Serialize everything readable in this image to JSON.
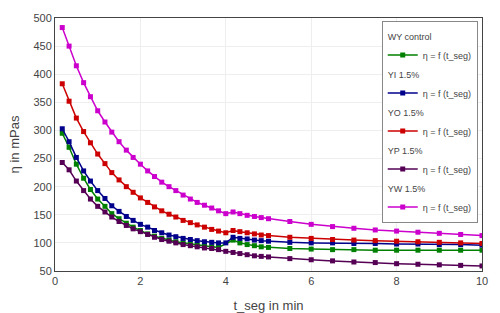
{
  "chart_data": {
    "type": "line",
    "xlabel": "t_seg in min",
    "ylabel": "η in mPas",
    "xlim": [
      0,
      10
    ],
    "ylim": [
      50,
      500
    ],
    "xticks": [
      0,
      2,
      4,
      6,
      8,
      10
    ],
    "yticks": [
      50,
      100,
      150,
      200,
      250,
      300,
      350,
      400,
      450,
      500
    ],
    "grid": true,
    "legend": "upper right",
    "marker": "square",
    "series": [
      {
        "legend_group": "WY control",
        "name": "η = f (t_seg)",
        "color": "#008000",
        "x": [
          0.17,
          0.33,
          0.5,
          0.67,
          0.83,
          1.0,
          1.17,
          1.33,
          1.5,
          1.67,
          1.83,
          2.0,
          2.17,
          2.33,
          2.5,
          2.67,
          2.83,
          3.0,
          3.17,
          3.33,
          3.5,
          3.67,
          3.83,
          4.17,
          4.33,
          4.5,
          4.67,
          4.83,
          5.0,
          5.5,
          6.0,
          6.5,
          7.0,
          7.5,
          8.0,
          8.5,
          9.0,
          9.5,
          10.0
        ],
        "values": [
          295,
          270,
          240,
          215,
          195,
          178,
          165,
          152,
          143,
          135,
          128,
          122,
          116,
          112,
          108,
          105,
          102,
          100,
          98,
          96,
          95,
          93,
          92,
          105,
          100,
          97,
          95,
          93,
          92,
          90,
          89,
          88,
          88,
          87,
          87,
          87,
          87,
          87,
          87
        ]
      },
      {
        "legend_group": "YI 1.5%",
        "name": "η = f (t_seg)",
        "color": "#00008B",
        "x": [
          0.17,
          0.33,
          0.5,
          0.67,
          0.83,
          1.0,
          1.17,
          1.33,
          1.5,
          1.67,
          1.83,
          2.0,
          2.17,
          2.33,
          2.5,
          2.67,
          2.83,
          3.0,
          3.17,
          3.33,
          3.5,
          3.67,
          3.83,
          4.0,
          4.17,
          4.33,
          4.5,
          4.67,
          4.83,
          5.0,
          5.5,
          6.0,
          6.5,
          7.0,
          7.5,
          8.0,
          8.5,
          9.0,
          9.5,
          10.0
        ],
        "values": [
          303,
          280,
          252,
          228,
          210,
          193,
          179,
          166,
          156,
          147,
          140,
          133,
          128,
          122,
          118,
          114,
          111,
          108,
          106,
          104,
          102,
          101,
          100,
          100,
          110,
          108,
          107,
          105,
          104,
          103,
          101,
          100,
          100,
          99,
          99,
          98,
          98,
          97,
          97,
          96
        ]
      },
      {
        "legend_group": "YO 1.5%",
        "name": "η = f (t_seg)",
        "color": "#CC0000",
        "x": [
          0.17,
          0.33,
          0.5,
          0.67,
          0.83,
          1.0,
          1.17,
          1.33,
          1.5,
          1.67,
          1.83,
          2.0,
          2.17,
          2.33,
          2.5,
          2.67,
          2.83,
          3.0,
          3.17,
          3.33,
          3.5,
          3.67,
          3.83,
          4.0,
          4.17,
          4.33,
          4.5,
          4.67,
          4.83,
          5.0,
          5.5,
          6.0,
          6.5,
          7.0,
          7.5,
          8.0,
          8.5,
          9.0,
          9.5,
          10.0
        ],
        "values": [
          383,
          352,
          322,
          298,
          278,
          258,
          241,
          225,
          212,
          200,
          190,
          180,
          172,
          164,
          157,
          151,
          146,
          140,
          136,
          132,
          128,
          124,
          121,
          118,
          122,
          120,
          118,
          116,
          114,
          113,
          110,
          108,
          106,
          105,
          104,
          103,
          102,
          101,
          100,
          99
        ]
      },
      {
        "legend_group": "YP 1.5%",
        "name": "η = f (t_seg)",
        "color": "#550055",
        "x": [
          0.17,
          0.33,
          0.5,
          0.67,
          0.83,
          1.0,
          1.17,
          1.33,
          1.5,
          1.67,
          1.83,
          2.0,
          2.17,
          2.33,
          2.5,
          2.67,
          2.83,
          3.0,
          3.17,
          3.33,
          3.5,
          3.67,
          3.83,
          4.0,
          4.17,
          4.33,
          4.5,
          4.67,
          4.83,
          5.0,
          5.5,
          6.0,
          6.5,
          7.0,
          7.5,
          8.0,
          8.5,
          9.0,
          9.5,
          10.0
        ],
        "values": [
          243,
          230,
          210,
          193,
          178,
          165,
          155,
          146,
          138,
          131,
          125,
          120,
          115,
          110,
          106,
          103,
          100,
          97,
          95,
          93,
          91,
          90,
          88,
          85,
          83,
          81,
          79,
          77,
          76,
          75,
          72,
          70,
          68,
          66,
          65,
          63,
          62,
          61,
          60,
          59
        ]
      },
      {
        "legend_group": "YW 1.5%",
        "name": "η = f (t_seg)",
        "color": "#CC00CC",
        "x": [
          0.17,
          0.33,
          0.5,
          0.67,
          0.83,
          1.0,
          1.17,
          1.33,
          1.5,
          1.67,
          1.83,
          2.0,
          2.17,
          2.33,
          2.5,
          2.67,
          2.83,
          3.0,
          3.17,
          3.33,
          3.5,
          3.67,
          3.83,
          4.0,
          4.17,
          4.33,
          4.5,
          4.67,
          4.83,
          5.0,
          5.5,
          6.0,
          6.5,
          7.0,
          7.5,
          8.0,
          8.5,
          9.0,
          9.5,
          10.0
        ],
        "values": [
          483,
          450,
          415,
          385,
          360,
          335,
          315,
          297,
          280,
          265,
          252,
          240,
          228,
          218,
          208,
          200,
          193,
          185,
          178,
          172,
          167,
          162,
          157,
          152,
          155,
          152,
          149,
          147,
          145,
          143,
          138,
          133,
          129,
          126,
          123,
          121,
          119,
          117,
          115,
          113
        ]
      }
    ]
  }
}
